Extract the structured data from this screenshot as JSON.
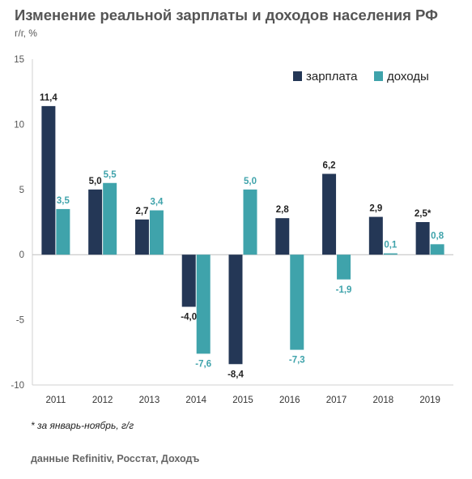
{
  "header": {
    "title": "Изменение реальной зарплаты и доходов населения РФ",
    "subtitle": "г/г, %"
  },
  "footnote": "* за январь-ноябрь, г/г",
  "source": "данные Refinitiv, Росстат, Доходъ",
  "colors": {
    "salary": "#243756",
    "income": "#3fa3ab",
    "income_label": "#3fa3ab",
    "salary_label": "#222222"
  },
  "chart_data": {
    "type": "bar",
    "title": "Изменение реальной зарплаты и доходов населения РФ",
    "subtitle": "г/г, %",
    "categories": [
      "2011",
      "2012",
      "2013",
      "2014",
      "2015",
      "2016",
      "2017",
      "2018",
      "2019"
    ],
    "series": [
      {
        "name": "зарплата",
        "values": [
          11.4,
          5.0,
          2.7,
          -4.0,
          -8.4,
          2.8,
          6.2,
          2.9,
          2.5
        ],
        "labels": [
          "11,4",
          "5,0",
          "2,7",
          "-4,0",
          "-8,4",
          "2,8",
          "6,2",
          "2,9",
          "2,5*"
        ]
      },
      {
        "name": "доходы",
        "values": [
          3.5,
          5.5,
          3.4,
          -7.6,
          5.0,
          -7.3,
          -1.9,
          0.1,
          0.8
        ],
        "labels": [
          "3,5",
          "5,5",
          "3,4",
          "-7,6",
          "5,0",
          "-7,3",
          "-1,9",
          "0,1",
          "0,8"
        ]
      }
    ],
    "ylim": [
      -10,
      15
    ],
    "yticks": [
      15,
      10,
      5,
      0,
      -5,
      -10
    ],
    "ytick_labels": [
      "15",
      "10",
      "5",
      "0",
      "-5",
      "-10"
    ],
    "grid": false,
    "legend": "top-right"
  }
}
